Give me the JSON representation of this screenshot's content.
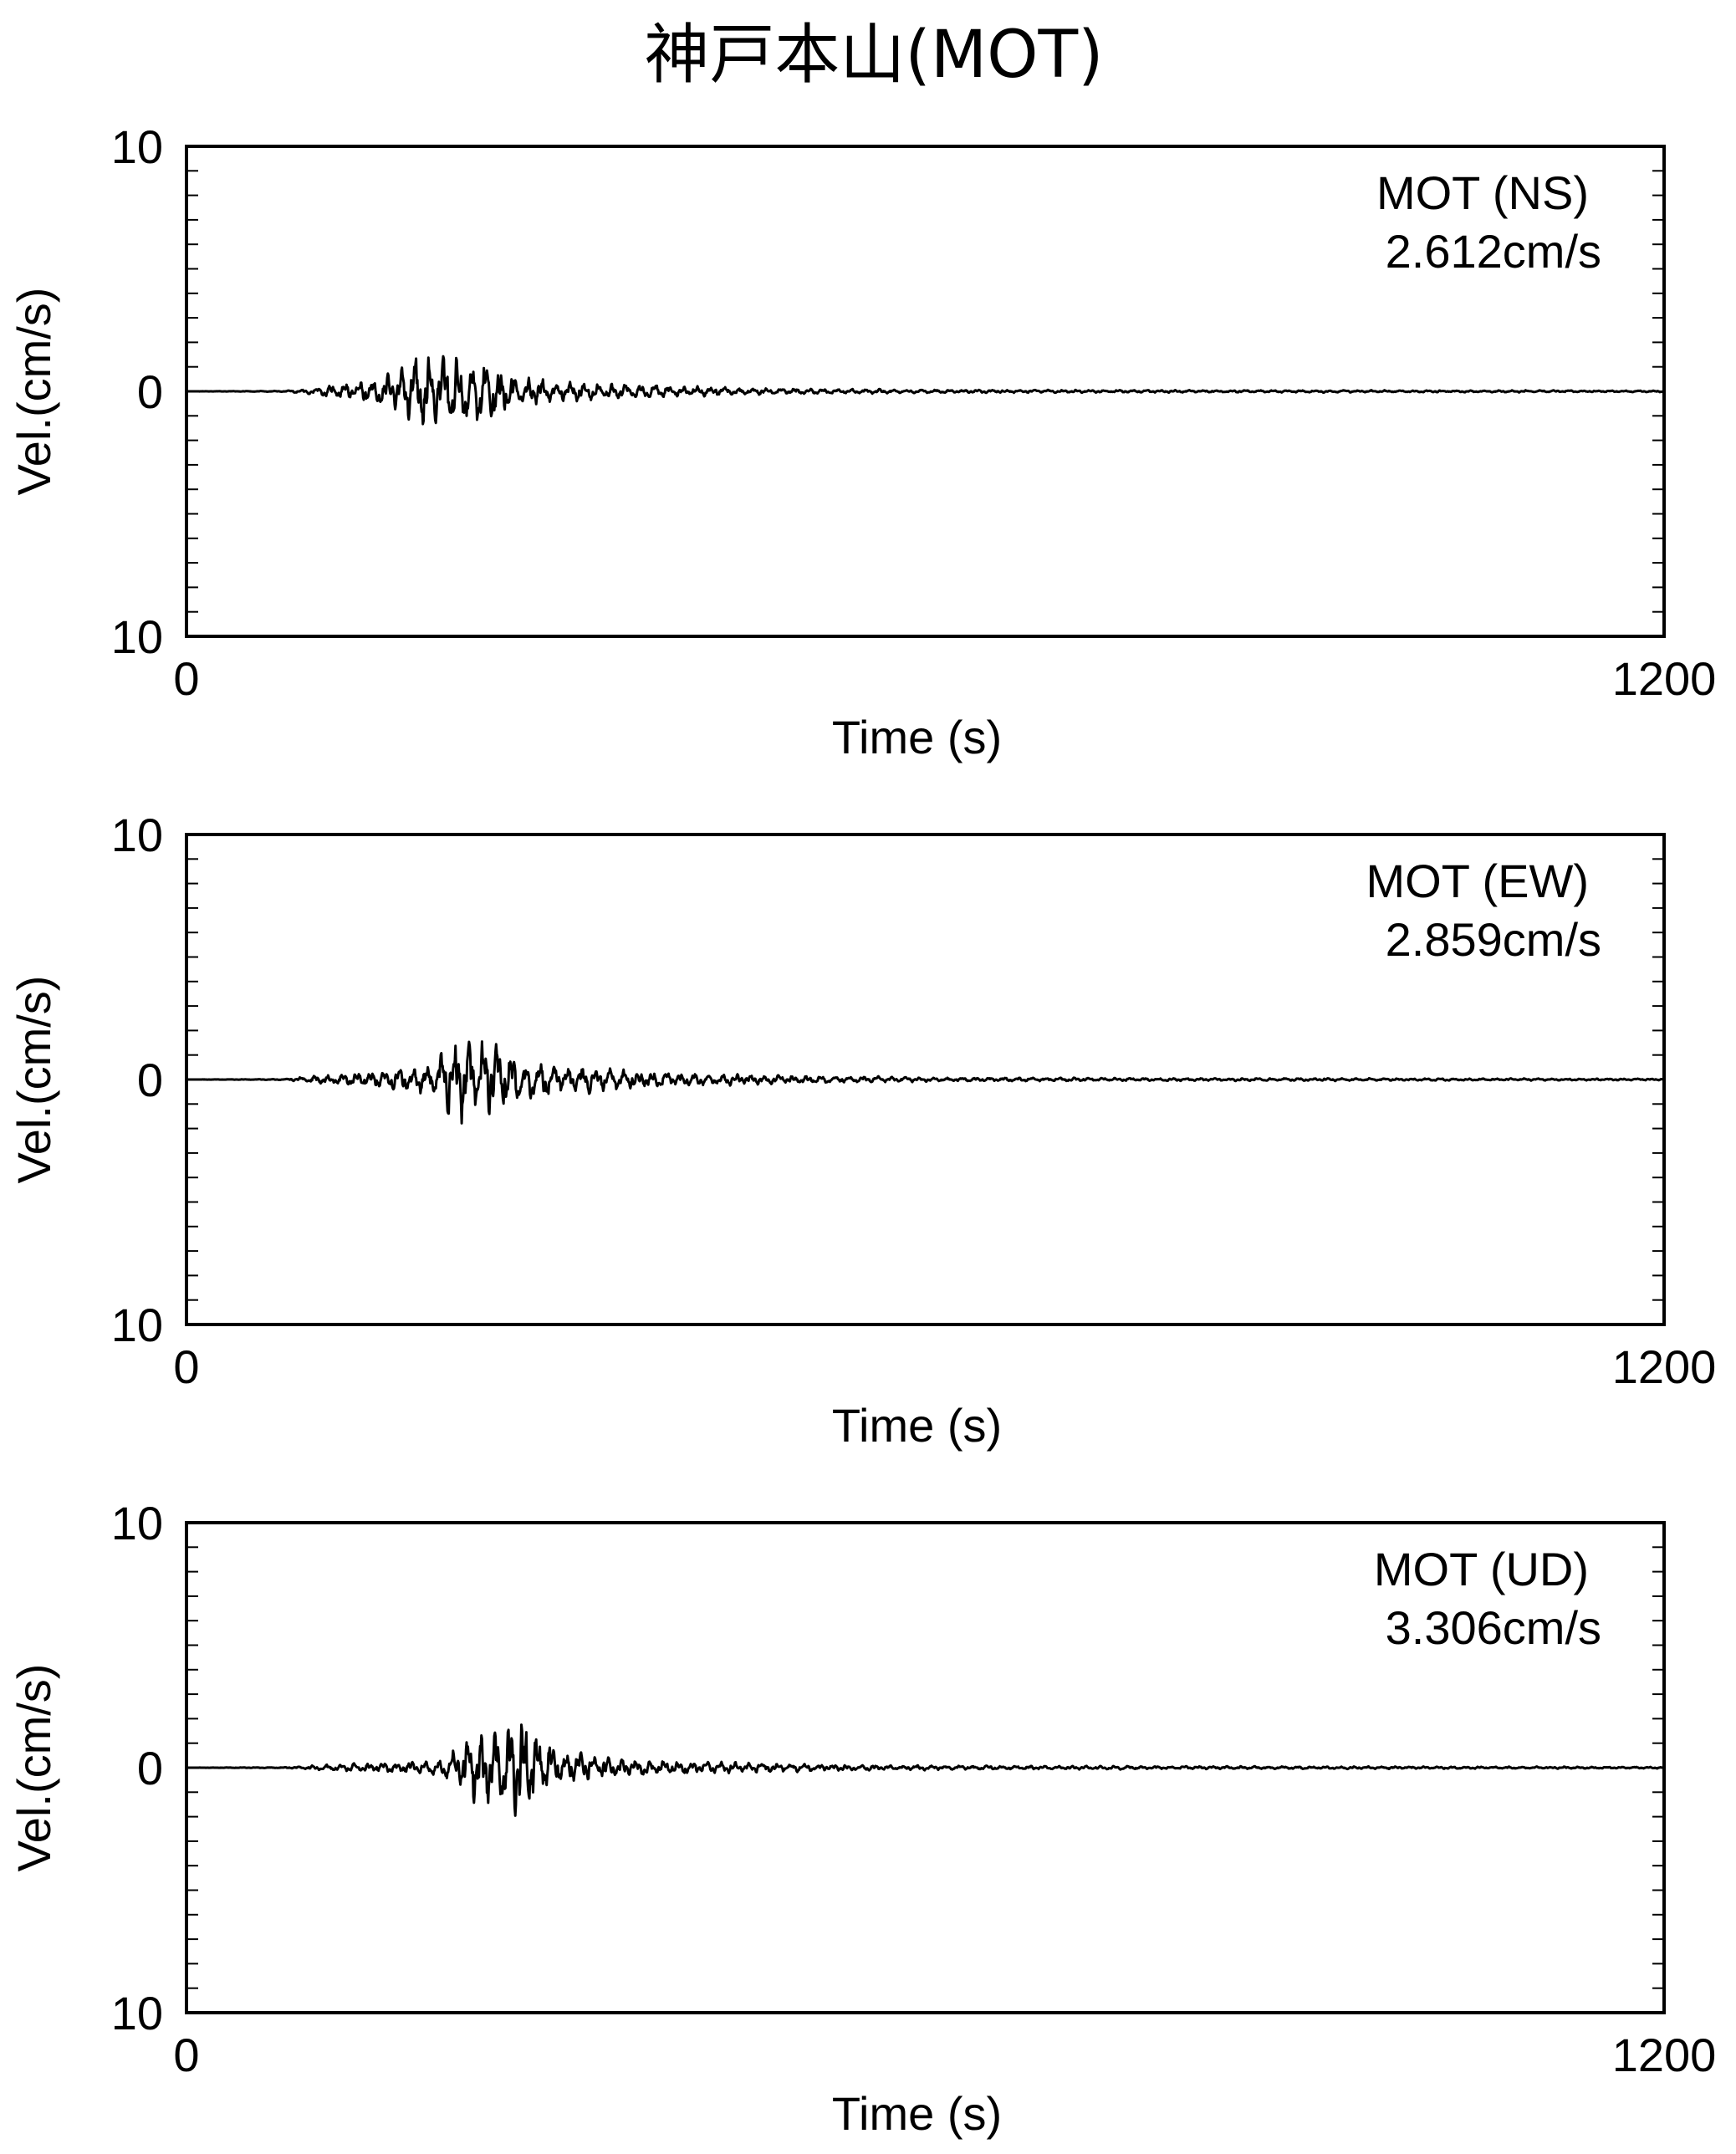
{
  "title": "神戸本山(MOT)",
  "chart_data": [
    {
      "type": "line",
      "component": "NS",
      "annotation": "MOT (NS)",
      "peak_label": "2.612cm/s",
      "peak": 2.612,
      "xlabel": "Time (s)",
      "ylabel": "Vel.(cm/s)",
      "xlim": [
        0,
        1200
      ],
      "ylim": [
        -10,
        10
      ],
      "x_tick_labels": [
        "0",
        "1200"
      ],
      "y_tick_labels": [
        "10",
        "0",
        "10"
      ],
      "grid": false,
      "envelope_t": [
        0,
        80,
        110,
        130,
        150,
        170,
        190,
        210,
        225,
        240,
        260,
        280,
        300,
        330,
        360,
        400,
        450,
        500,
        600,
        700,
        800,
        900,
        1000,
        1100,
        1200
      ],
      "envelope_a": [
        0,
        0.03,
        0.3,
        0.5,
        0.8,
        1.2,
        2.5,
        2.6,
        2.4,
        2.0,
        1.4,
        1.0,
        0.7,
        0.55,
        0.45,
        0.35,
        0.25,
        0.18,
        0.12,
        0.1,
        0.08,
        0.08,
        0.07,
        0.07,
        0.06
      ]
    },
    {
      "type": "line",
      "component": "EW",
      "annotation": "MOT (EW)",
      "peak_label": "2.859cm/s",
      "peak": 2.859,
      "xlabel": "Time (s)",
      "ylabel": "Vel.(cm/s)",
      "xlim": [
        0,
        1200
      ],
      "ylim": [
        -10,
        10
      ],
      "x_tick_labels": [
        "0",
        "1200"
      ],
      "y_tick_labels": [
        "10",
        "0",
        "10"
      ],
      "grid": false,
      "envelope_t": [
        0,
        80,
        110,
        130,
        150,
        180,
        200,
        220,
        240,
        260,
        280,
        300,
        330,
        360,
        400,
        450,
        500,
        600,
        700,
        800,
        900,
        1000,
        1100,
        1200
      ],
      "envelope_a": [
        0,
        0.03,
        0.3,
        0.4,
        0.5,
        0.8,
        1.0,
        2.8,
        2.6,
        1.8,
        1.4,
        1.0,
        0.8,
        0.6,
        0.45,
        0.35,
        0.25,
        0.15,
        0.12,
        0.1,
        0.09,
        0.08,
        0.07,
        0.06
      ]
    },
    {
      "type": "line",
      "component": "UD",
      "annotation": "MOT (UD)",
      "peak_label": "3.306cm/s",
      "peak": 3.306,
      "xlabel": "Time (s)",
      "ylabel": "Vel.(cm/s)",
      "xlim": [
        0,
        1200
      ],
      "ylim": [
        -10,
        10
      ],
      "x_tick_labels": [
        "0",
        "1200"
      ],
      "y_tick_labels": [
        "10",
        "0",
        "10"
      ],
      "grid": false,
      "envelope_t": [
        0,
        80,
        110,
        150,
        180,
        210,
        240,
        260,
        275,
        290,
        310,
        330,
        360,
        400,
        450,
        500,
        600,
        700,
        800,
        900,
        1000,
        1100,
        1200
      ],
      "envelope_a": [
        0,
        0.03,
        0.2,
        0.3,
        0.4,
        0.6,
        2.8,
        2.5,
        3.3,
        1.8,
        1.1,
        0.8,
        0.6,
        0.45,
        0.35,
        0.25,
        0.15,
        0.12,
        0.1,
        0.09,
        0.08,
        0.07,
        0.06
      ]
    }
  ]
}
